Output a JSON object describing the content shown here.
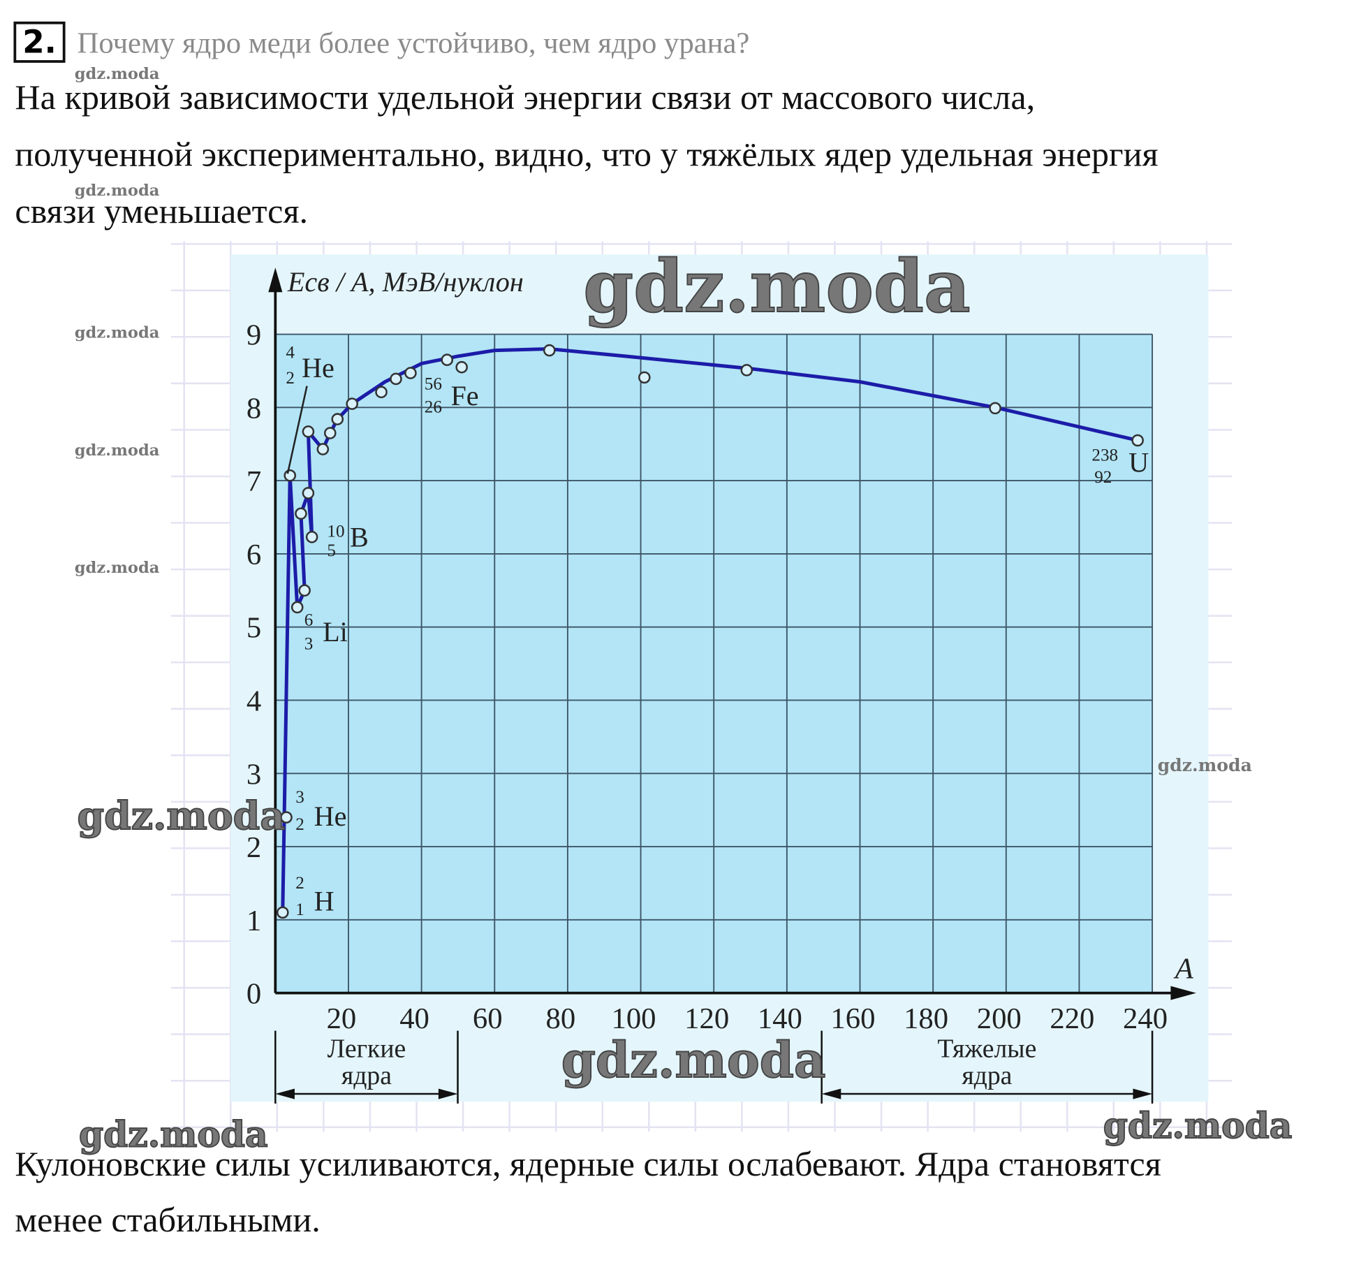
{
  "question": {
    "number": "2.",
    "text": "Почему ядро меди более устойчиво, чем ядро урана?"
  },
  "answer_top": [
    "На кривой зависимости удельной энергии связи от массового числа,",
    "полученной экспериментально, видно, что у тяжёлых ядер удельная энергия",
    "связи уменьшается."
  ],
  "answer_bottom": [
    "Кулоновские силы усиливаются, ядерные силы ослабевают. Ядра становятся",
    "менее стабильными."
  ],
  "watermarks": [
    "gdz.moda",
    "gdz.moda",
    "gdz.moda",
    "gdz.moda",
    "gdz.moda",
    "gdz.moda",
    "gdz.moda",
    "gdz.moda",
    "gdz.moda",
    "gdz.moda",
    "gdz.moda"
  ],
  "chart_data": {
    "type": "scatter",
    "y_label": "Eсв / A, МэВ/нуклон",
    "x_label": "A",
    "xlim": [
      0,
      240
    ],
    "ylim": [
      0,
      9
    ],
    "xticks": [
      20,
      40,
      60,
      80,
      100,
      120,
      140,
      160,
      180,
      200,
      220,
      240
    ],
    "yticks": [
      0,
      1,
      2,
      3,
      4,
      5,
      6,
      7,
      8,
      9
    ],
    "grid": true,
    "series": [
      {
        "name": "points",
        "color": "#333333",
        "x": [
          2,
          3,
          4,
          6,
          8,
          7,
          9,
          10,
          9,
          13,
          15,
          17,
          21,
          29,
          33,
          37,
          47,
          51,
          75,
          101,
          129,
          197,
          236
        ],
        "values": [
          1.1,
          2.4,
          7.07,
          5.27,
          5.5,
          6.55,
          6.83,
          6.23,
          7.67,
          7.43,
          7.65,
          7.84,
          8.05,
          8.21,
          8.39,
          8.47,
          8.65,
          8.55,
          8.78,
          8.41,
          8.51,
          7.99,
          7.55
        ]
      },
      {
        "name": "curve",
        "color": "#1c1ca8",
        "x": [
          2,
          4,
          6,
          8,
          7,
          9,
          10,
          9,
          13,
          15,
          17,
          21,
          30,
          40,
          50,
          60,
          75,
          100,
          130,
          160,
          197,
          236
        ],
        "values": [
          1.1,
          7.07,
          5.27,
          5.5,
          6.55,
          6.83,
          6.23,
          7.67,
          7.43,
          7.65,
          7.84,
          8.05,
          8.35,
          8.6,
          8.7,
          8.78,
          8.8,
          8.68,
          8.53,
          8.35,
          8.0,
          7.55
        ]
      }
    ],
    "annotations": [
      {
        "mass": "2",
        "charge": "1",
        "symbol": "H"
      },
      {
        "mass": "3",
        "charge": "2",
        "symbol": "He"
      },
      {
        "mass": "4",
        "charge": "2",
        "symbol": "He"
      },
      {
        "mass": "10",
        "charge": "5",
        "symbol": "B"
      },
      {
        "mass": "6",
        "charge": "3",
        "symbol": "Li"
      },
      {
        "mass": "56",
        "charge": "26",
        "symbol": "Fe"
      },
      {
        "mass": "238",
        "charge": "92",
        "symbol": "U"
      }
    ],
    "ranges": [
      {
        "label": [
          "Легкие",
          "ядра"
        ]
      },
      {
        "label": [
          "Тяжелые",
          "ядра"
        ]
      }
    ]
  }
}
